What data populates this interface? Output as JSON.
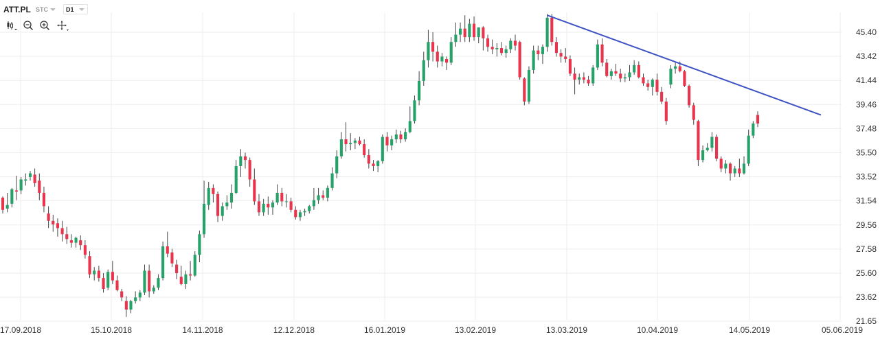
{
  "header": {
    "symbol": "ATT.PL",
    "type_select": "STC",
    "interval_select": "D1"
  },
  "tools": [
    "candles-style-icon",
    "zoom-out-icon",
    "zoom-in-icon",
    "crosshair-move-icon"
  ],
  "colors": {
    "up": "#26a269",
    "down": "#e8344c",
    "wick": "#444444",
    "trendline": "#3e52c4",
    "grid": "#eeeeee",
    "text": "#333333"
  },
  "chart_data": {
    "type": "candlestick",
    "title": "",
    "xlabel": "",
    "ylabel": "",
    "ylim": [
      21.2,
      47.3
    ],
    "y_ticks": [
      "45.40",
      "43.42",
      "41.44",
      "39.46",
      "37.48",
      "35.50",
      "33.52",
      "31.54",
      "29.56",
      "27.58",
      "25.60",
      "23.62",
      "21.65"
    ],
    "x_ticks": [
      "17.09.2018",
      "15.10.2018",
      "14.11.2018",
      "12.12.2018",
      "16.01.2019",
      "13.02.2019",
      "13.03.2019",
      "10.04.2019",
      "14.05.2019",
      "05.06.2019"
    ],
    "grid": true,
    "trendline": {
      "from": [
        "07.03.2019",
        46.8
      ],
      "to": [
        "05.06.2019",
        38.6
      ]
    },
    "ohlc": [
      [
        31.8,
        31.9,
        30.5,
        30.8
      ],
      [
        30.9,
        32.2,
        30.6,
        31.2
      ],
      [
        31.3,
        32.6,
        31.0,
        32.5
      ],
      [
        32.4,
        33.6,
        31.6,
        32.3
      ],
      [
        32.4,
        33.5,
        32.1,
        33.3
      ],
      [
        33.2,
        33.8,
        32.8,
        33.3
      ],
      [
        33.5,
        34.0,
        33.2,
        33.8
      ],
      [
        33.7,
        34.2,
        32.7,
        33.0
      ],
      [
        33.2,
        33.8,
        31.6,
        32.2
      ],
      [
        32.2,
        32.7,
        30.6,
        31.1
      ],
      [
        30.5,
        31.1,
        29.3,
        29.9
      ],
      [
        29.9,
        30.4,
        29.0,
        29.6
      ],
      [
        29.7,
        30.1,
        28.6,
        29.3
      ],
      [
        29.3,
        29.9,
        28.2,
        28.8
      ],
      [
        28.8,
        29.4,
        28.0,
        28.4
      ],
      [
        28.3,
        28.8,
        27.7,
        28.1
      ],
      [
        28.1,
        28.6,
        27.7,
        28.5
      ],
      [
        28.3,
        28.7,
        27.5,
        27.9
      ],
      [
        27.9,
        28.3,
        26.8,
        27.1
      ],
      [
        27.0,
        27.4,
        25.2,
        25.5
      ],
      [
        25.5,
        26.1,
        25.0,
        25.8
      ],
      [
        25.8,
        26.2,
        24.9,
        25.2
      ],
      [
        25.2,
        25.6,
        24.0,
        24.3
      ],
      [
        24.4,
        25.9,
        24.2,
        25.7
      ],
      [
        25.7,
        26.6,
        24.7,
        25.0
      ],
      [
        25.0,
        25.4,
        24.1,
        24.2
      ],
      [
        24.1,
        24.3,
        23.3,
        23.6
      ],
      [
        23.3,
        23.7,
        22.0,
        22.6
      ],
      [
        22.6,
        23.4,
        22.3,
        23.3
      ],
      [
        23.3,
        24.1,
        23.1,
        23.6
      ],
      [
        23.6,
        24.2,
        23.3,
        24.0
      ],
      [
        24.0,
        26.3,
        23.8,
        25.8
      ],
      [
        25.8,
        26.3,
        23.6,
        24.1
      ],
      [
        24.1,
        24.6,
        23.9,
        24.4
      ],
      [
        24.4,
        25.5,
        24.2,
        25.2
      ],
      [
        25.2,
        28.2,
        25.0,
        27.8
      ],
      [
        27.8,
        29.0,
        26.9,
        27.2
      ],
      [
        27.3,
        27.6,
        26.1,
        26.4
      ],
      [
        26.3,
        26.7,
        25.1,
        25.6
      ],
      [
        25.3,
        26.2,
        24.6,
        24.7
      ],
      [
        24.7,
        25.8,
        24.3,
        25.5
      ],
      [
        25.5,
        26.6,
        25.0,
        25.4
      ],
      [
        25.4,
        27.4,
        25.3,
        27.1
      ],
      [
        27.1,
        29.1,
        26.5,
        28.8
      ],
      [
        28.8,
        33.2,
        28.5,
        31.3
      ],
      [
        31.2,
        33.1,
        30.8,
        32.6
      ],
      [
        32.6,
        32.9,
        31.4,
        32.1
      ],
      [
        32.1,
        32.3,
        29.8,
        30.3
      ],
      [
        30.3,
        31.4,
        29.9,
        31.1
      ],
      [
        31.1,
        32.0,
        30.8,
        31.4
      ],
      [
        31.4,
        32.9,
        30.9,
        32.2
      ],
      [
        32.2,
        34.9,
        32.1,
        34.4
      ],
      [
        34.4,
        35.8,
        33.5,
        35.2
      ],
      [
        35.2,
        35.5,
        34.2,
        34.9
      ],
      [
        34.9,
        35.1,
        32.7,
        33.3
      ],
      [
        33.3,
        34.2,
        31.2,
        31.5
      ],
      [
        31.5,
        32.1,
        30.3,
        30.6
      ],
      [
        30.6,
        31.7,
        30.3,
        31.3
      ],
      [
        31.3,
        31.9,
        30.4,
        31.0
      ],
      [
        31.0,
        31.6,
        30.4,
        31.4
      ],
      [
        31.4,
        32.9,
        31.2,
        32.2
      ],
      [
        32.2,
        32.6,
        31.1,
        31.5
      ],
      [
        31.5,
        32.1,
        31.0,
        31.5
      ],
      [
        31.5,
        31.8,
        30.6,
        30.8
      ],
      [
        30.8,
        31.1,
        30.0,
        30.2
      ],
      [
        30.2,
        30.8,
        29.9,
        30.6
      ],
      [
        30.6,
        30.9,
        30.3,
        30.7
      ],
      [
        30.7,
        31.2,
        30.5,
        31.1
      ],
      [
        31.1,
        32.6,
        30.8,
        31.6
      ],
      [
        31.6,
        32.6,
        31.3,
        32.0
      ],
      [
        32.0,
        32.4,
        31.6,
        31.8
      ],
      [
        31.8,
        32.8,
        31.5,
        32.6
      ],
      [
        32.6,
        34.3,
        32.4,
        33.8
      ],
      [
        33.8,
        35.7,
        33.4,
        35.2
      ],
      [
        35.2,
        37.2,
        35.0,
        36.6
      ],
      [
        36.6,
        38.0,
        35.6,
        36.2
      ],
      [
        36.2,
        37.1,
        35.7,
        36.3
      ],
      [
        36.3,
        36.7,
        35.8,
        36.5
      ],
      [
        36.5,
        36.8,
        36.1,
        36.2
      ],
      [
        36.2,
        36.6,
        35.1,
        35.3
      ],
      [
        35.3,
        35.8,
        34.2,
        34.6
      ],
      [
        34.6,
        34.9,
        34.0,
        34.4
      ],
      [
        34.4,
        34.9,
        33.9,
        34.8
      ],
      [
        34.8,
        37.0,
        34.6,
        36.8
      ],
      [
        36.8,
        37.2,
        35.6,
        36.1
      ],
      [
        36.1,
        36.9,
        35.7,
        36.6
      ],
      [
        36.6,
        37.4,
        36.3,
        37.0
      ],
      [
        37.0,
        37.3,
        36.3,
        36.6
      ],
      [
        36.6,
        37.5,
        36.4,
        37.2
      ],
      [
        37.2,
        39.3,
        37.1,
        38.1
      ],
      [
        38.1,
        40.2,
        37.9,
        39.8
      ],
      [
        39.8,
        42.2,
        39.4,
        41.4
      ],
      [
        41.4,
        43.8,
        41.0,
        43.1
      ],
      [
        43.1,
        45.6,
        42.5,
        44.6
      ],
      [
        44.6,
        45.4,
        43.0,
        43.8
      ],
      [
        43.8,
        44.3,
        42.5,
        43.0
      ],
      [
        43.0,
        43.7,
        42.6,
        43.4
      ],
      [
        43.2,
        43.4,
        42.3,
        42.9
      ],
      [
        42.9,
        45.0,
        42.7,
        44.6
      ],
      [
        44.6,
        46.2,
        44.2,
        45.2
      ],
      [
        45.2,
        46.2,
        44.6,
        45.7
      ],
      [
        45.7,
        46.8,
        44.6,
        45.0
      ],
      [
        45.0,
        46.5,
        44.6,
        46.1
      ],
      [
        46.1,
        46.7,
        44.7,
        45.0
      ],
      [
        45.0,
        45.8,
        44.5,
        45.8
      ],
      [
        45.8,
        45.9,
        43.9,
        44.9
      ],
      [
        44.9,
        45.2,
        43.8,
        44.2
      ],
      [
        44.2,
        44.8,
        43.6,
        44.0
      ],
      [
        44.0,
        44.5,
        43.4,
        44.1
      ],
      [
        44.1,
        44.6,
        43.5,
        43.7
      ],
      [
        43.7,
        44.3,
        43.3,
        44.0
      ],
      [
        44.0,
        44.9,
        43.7,
        44.7
      ],
      [
        44.7,
        45.2,
        43.9,
        44.3
      ],
      [
        44.6,
        44.7,
        41.5,
        41.7
      ],
      [
        41.6,
        41.7,
        39.4,
        39.7
      ],
      [
        39.7,
        42.6,
        39.5,
        42.3
      ],
      [
        42.3,
        44.3,
        42.0,
        43.9
      ],
      [
        43.9,
        44.3,
        43.1,
        43.6
      ],
      [
        43.6,
        44.4,
        42.8,
        44.2
      ],
      [
        44.2,
        46.9,
        43.8,
        46.6
      ],
      [
        46.6,
        46.9,
        44.3,
        44.6
      ],
      [
        44.6,
        45.0,
        43.4,
        43.7
      ],
      [
        43.7,
        44.0,
        42.9,
        43.4
      ],
      [
        43.4,
        44.1,
        42.9,
        43.2
      ],
      [
        43.2,
        43.5,
        41.8,
        42.0
      ],
      [
        42.0,
        42.5,
        40.3,
        41.5
      ],
      [
        41.5,
        42.0,
        41.1,
        41.7
      ],
      [
        41.7,
        42.1,
        41.2,
        41.5
      ],
      [
        41.5,
        41.8,
        41.0,
        41.2
      ],
      [
        41.2,
        42.7,
        41.0,
        42.5
      ],
      [
        42.5,
        44.8,
        42.3,
        44.4
      ],
      [
        44.4,
        44.9,
        42.6,
        42.9
      ],
      [
        42.9,
        43.2,
        41.7,
        41.8
      ],
      [
        41.8,
        42.4,
        41.5,
        42.2
      ],
      [
        42.2,
        42.8,
        41.8,
        42.0
      ],
      [
        42.0,
        42.4,
        41.3,
        41.6
      ],
      [
        41.6,
        42.0,
        41.3,
        41.7
      ],
      [
        41.7,
        42.7,
        41.4,
        42.1
      ],
      [
        42.1,
        43.1,
        41.9,
        42.7
      ],
      [
        42.7,
        43.0,
        41.6,
        41.7
      ],
      [
        41.7,
        42.0,
        41.0,
        41.2
      ],
      [
        41.2,
        41.5,
        40.6,
        40.9
      ],
      [
        40.9,
        41.6,
        40.2,
        41.5
      ],
      [
        41.5,
        42.0,
        40.2,
        40.5
      ],
      [
        40.5,
        40.9,
        39.5,
        39.7
      ],
      [
        39.7,
        40.0,
        37.8,
        38.1
      ],
      [
        41.1,
        42.7,
        40.8,
        42.4
      ],
      [
        42.4,
        42.9,
        42.0,
        42.6
      ],
      [
        42.6,
        43.0,
        42.1,
        42.2
      ],
      [
        42.2,
        42.3,
        40.9,
        41.0
      ],
      [
        41.0,
        41.1,
        39.2,
        39.4
      ],
      [
        39.4,
        39.6,
        37.8,
        38.2
      ],
      [
        38.1,
        38.2,
        34.4,
        34.9
      ],
      [
        34.9,
        36.1,
        34.7,
        35.7
      ],
      [
        35.7,
        36.3,
        35.6,
        35.9
      ],
      [
        35.9,
        37.2,
        35.6,
        36.8
      ],
      [
        36.8,
        37.0,
        34.8,
        35.0
      ],
      [
        35.0,
        35.2,
        33.9,
        34.2
      ],
      [
        34.2,
        34.9,
        33.8,
        34.6
      ],
      [
        34.6,
        34.7,
        33.2,
        33.8
      ],
      [
        33.8,
        34.4,
        33.5,
        34.2
      ],
      [
        34.2,
        35.0,
        33.5,
        33.8
      ],
      [
        33.8,
        35.2,
        33.7,
        34.6
      ],
      [
        34.6,
        37.4,
        34.4,
        36.9
      ],
      [
        36.9,
        38.1,
        36.7,
        37.9
      ],
      [
        38.6,
        38.9,
        37.6,
        37.9
      ]
    ],
    "x_range": [
      "17.09.2018",
      "05.06.2019"
    ]
  }
}
